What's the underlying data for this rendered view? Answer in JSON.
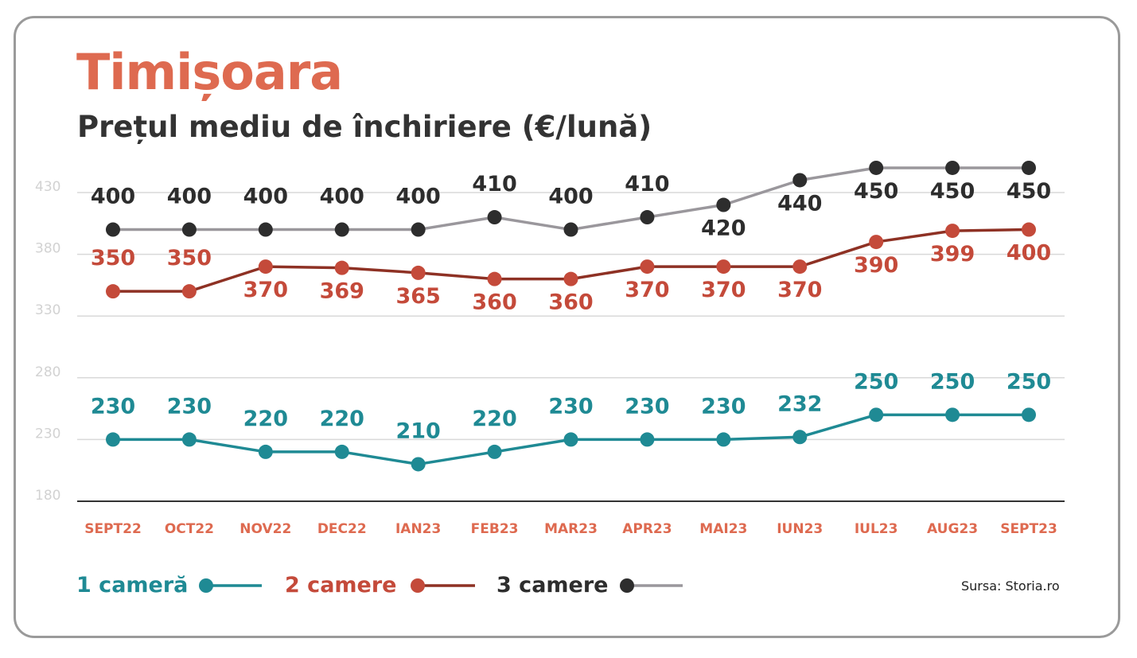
{
  "header": {
    "title": "Timișoara",
    "subtitle": "Prețul mediu de închiriere (€/lună)"
  },
  "source": "Sursa: Storia.ro",
  "chart_data": {
    "type": "line",
    "title": "Timișoara",
    "subtitle": "Prețul mediu de închiriere (€/lună)",
    "categories": [
      "SEPT22",
      "OCT22",
      "NOV22",
      "DEC22",
      "IAN23",
      "FEB23",
      "MAR23",
      "APR23",
      "MAI23",
      "IUN23",
      "IUL23",
      "AUG23",
      "SEPT23"
    ],
    "yticks": [
      430,
      380,
      330,
      280,
      230,
      180
    ],
    "ylim": [
      180,
      430
    ],
    "grid": true,
    "legend_position": "bottom-left",
    "series": [
      {
        "name": "1 cameră",
        "color": "#1f8a94",
        "line_color": "#1f8a94",
        "values": [
          230,
          230,
          220,
          220,
          210,
          220,
          230,
          230,
          230,
          232,
          250,
          250,
          250
        ]
      },
      {
        "name": "2 camere",
        "color": "#c44a3a",
        "line_color": "#8e3124",
        "values": [
          350,
          350,
          370,
          369,
          365,
          360,
          360,
          370,
          370,
          370,
          390,
          399,
          400
        ]
      },
      {
        "name": "3 camere",
        "color": "#2d2d2d",
        "line_color": "#9a979c",
        "values": [
          400,
          400,
          400,
          400,
          400,
          410,
          400,
          410,
          420,
          440,
          450,
          450,
          450
        ]
      }
    ]
  }
}
